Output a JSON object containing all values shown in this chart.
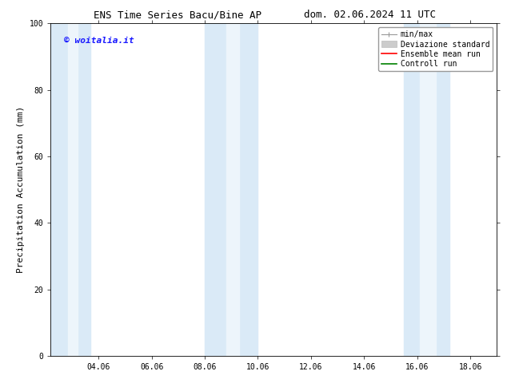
{
  "title_left": "ENS Time Series Bacu/Bine AP",
  "title_right": "dom. 02.06.2024 11 UTC",
  "ylabel": "Precipitation Accumulation (mm)",
  "watermark": "© woitalia.it",
  "watermark_color": "#1a1aff",
  "ylim": [
    0,
    100
  ],
  "xlim_start": 2.2,
  "xlim_end": 19.0,
  "xtick_labels": [
    "04.06",
    "06.06",
    "08.06",
    "10.06",
    "12.06",
    "14.06",
    "16.06",
    "18.06"
  ],
  "xtick_positions": [
    4,
    6,
    8,
    10,
    12,
    14,
    16,
    18
  ],
  "ytick_positions": [
    0,
    20,
    40,
    60,
    80,
    100
  ],
  "shaded_regions": [
    {
      "xmin": 2.2,
      "xmax": 3.7,
      "color": "#daeaf7"
    },
    {
      "xmin": 8.0,
      "xmax": 10.0,
      "color": "#daeaf7"
    },
    {
      "xmin": 15.5,
      "xmax": 17.2,
      "color": "#daeaf7"
    }
  ],
  "inner_shaded": [
    {
      "xmin": 2.85,
      "xmax": 3.2,
      "color": "#edf5fb"
    },
    {
      "xmin": 8.8,
      "xmax": 9.3,
      "color": "#edf5fb"
    },
    {
      "xmin": 16.1,
      "xmax": 16.7,
      "color": "#edf5fb"
    }
  ],
  "legend_entries": [
    {
      "label": "min/max",
      "color": "#aaaaaa",
      "lw": 1.0,
      "style": "minmax"
    },
    {
      "label": "Deviazione standard",
      "color": "#cccccc",
      "lw": 6,
      "style": "band"
    },
    {
      "label": "Ensemble mean run",
      "color": "#ff0000",
      "lw": 1.2,
      "style": "line"
    },
    {
      "label": "Controll run",
      "color": "#008000",
      "lw": 1.2,
      "style": "line"
    }
  ],
  "bg_color": "#ffffff",
  "plot_bg_color": "#ffffff",
  "border_color": "#000000",
  "title_fontsize": 9,
  "tick_fontsize": 7,
  "ylabel_fontsize": 8,
  "watermark_fontsize": 8,
  "legend_fontsize": 7
}
